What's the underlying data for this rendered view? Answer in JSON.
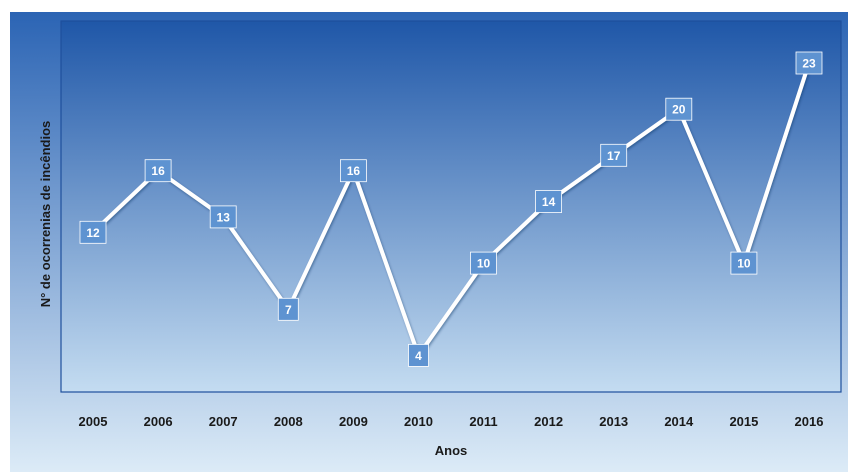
{
  "chart_data": {
    "type": "line",
    "title": "",
    "xlabel": "Anos",
    "ylabel": "N° de ocorrenias de incêndios",
    "categories": [
      "2005",
      "2006",
      "2007",
      "2008",
      "2009",
      "2010",
      "2011",
      "2012",
      "2013",
      "2014",
      "2015",
      "2016"
    ],
    "series": [
      {
        "values": [
          12,
          16,
          13,
          7,
          16,
          4,
          10,
          14,
          17,
          20,
          10,
          23
        ]
      }
    ],
    "data_labels": [
      "12",
      "16",
      "13",
      "7",
      "16",
      "4",
      "10",
      "14",
      "17",
      "20",
      "10",
      "23"
    ],
    "ylim": [
      0,
      25
    ],
    "grid": false,
    "legend": "none",
    "drop_lines": true
  },
  "colors": {
    "outer_top": "#2b64b4",
    "outer_bottom": "#dcebf7",
    "plot_top": "#1f57a8",
    "plot_bottom": "#c4dcf1",
    "plot_border": "#1e4f9c",
    "line": "#ffffff",
    "label_box": "#5e93d1",
    "label_text": "#ffffff",
    "drop_line": "#ffffff"
  }
}
